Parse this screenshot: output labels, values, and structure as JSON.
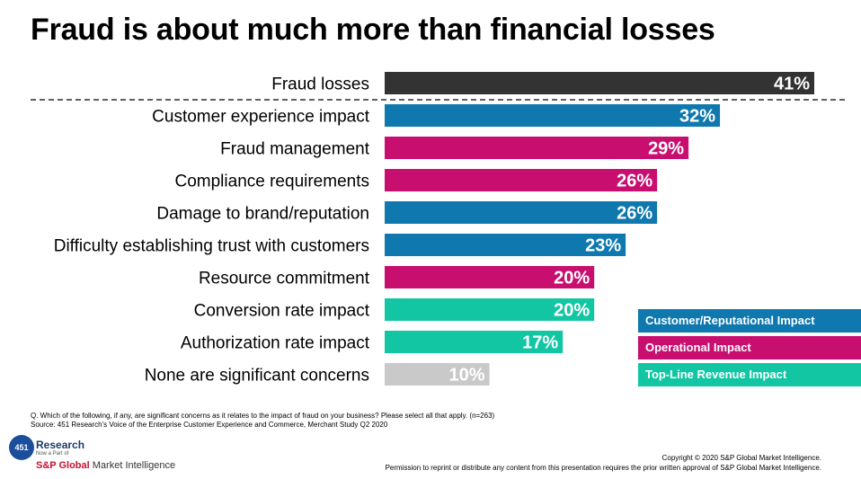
{
  "title": "Fraud is about much more than financial losses",
  "chart_data": {
    "type": "bar",
    "orientation": "horizontal",
    "categories": [
      "Fraud losses",
      "Customer experience impact",
      "Fraud management",
      "Compliance requirements",
      "Damage to brand/reputation",
      "Difficulty establishing trust with customers",
      "Resource commitment",
      "Conversion rate impact",
      "Authorization rate impact",
      "None are significant concerns"
    ],
    "values": [
      41,
      32,
      29,
      26,
      26,
      23,
      20,
      20,
      17,
      10
    ],
    "value_labels": [
      "41%",
      "32%",
      "29%",
      "26%",
      "26%",
      "23%",
      "20%",
      "20%",
      "17%",
      "10%"
    ],
    "bar_groups": [
      "losses",
      "customer",
      "operational",
      "operational",
      "customer",
      "customer",
      "operational",
      "revenue",
      "revenue",
      "none"
    ],
    "xlim": [
      0,
      41
    ],
    "grid": false,
    "divider_after_first": true
  },
  "colors": {
    "losses": "#333333",
    "customer": "#0f78ae",
    "operational": "#c80f6f",
    "revenue": "#12c6a3",
    "none": "#c9c9c9"
  },
  "legend": [
    {
      "label": "Customer/Reputational Impact",
      "group": "customer"
    },
    {
      "label": "Operational Impact",
      "group": "operational"
    },
    {
      "label": "Top-Line Revenue Impact",
      "group": "revenue"
    }
  ],
  "footnote": {
    "question": "Q. Which of the following, if any, are significant concerns as it relates to the impact of fraud on your business? Please select all that apply. (n=263)",
    "source": "Source: 451 Research's Voice of the Enterprise Customer Experience and Commerce, Merchant Study Q2 2020"
  },
  "logo": {
    "circle_text": "451",
    "research_text": "Research",
    "sub_text": "Now a Part of",
    "sp_text": "S&P Global",
    "mi_text": "Market Intelligence"
  },
  "copyright": {
    "line1": "Copyright © 2020 S&P Global Market Intelligence.",
    "line2": "Permission to reprint or distribute any content from this presentation requires the prior written approval of S&P Global Market Intelligence."
  }
}
